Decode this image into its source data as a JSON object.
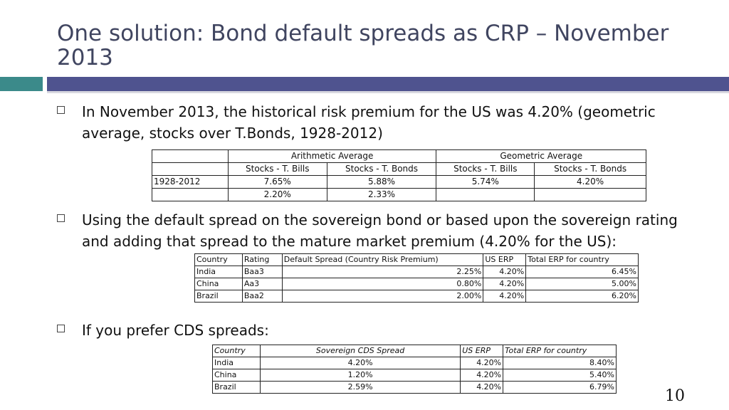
{
  "slide": {
    "title": "One solution: Bond default spreads as CRP – November 2013",
    "page_number": "10",
    "colors": {
      "title": "#404560",
      "accent_teal": "#3b8a8a",
      "accent_purple": "#4f538f"
    }
  },
  "bullets": [
    {
      "text": "In November 2013, the historical risk premium for the US was 4.20% (geometric average, stocks over T.Bonds, 1928-2012)"
    },
    {
      "text": "Using the default spread on the sovereign bond or based upon the sovereign rating and adding that spread to the mature market premium (4.20% for the US):"
    },
    {
      "text": "If you prefer CDS spreads:"
    }
  ],
  "premium_table": {
    "group_headers": [
      "Arithmetic Average",
      "Geometric Average"
    ],
    "sub_headers": [
      "Stocks - T. Bills",
      "Stocks - T. Bonds",
      "Stocks - T. Bills",
      "Stocks - T. Bonds"
    ],
    "rows": [
      {
        "label": "1928-2012",
        "cells": [
          "7.65%",
          "5.88%",
          "5.74%",
          "4.20%"
        ]
      },
      {
        "label": "",
        "cells": [
          "2.20%",
          "2.33%",
          "",
          ""
        ]
      }
    ]
  },
  "rating_table": {
    "headers": [
      "Country",
      "Rating",
      "Default Spread (Country Risk Premium)",
      "US ERP",
      "Total ERP for country"
    ],
    "rows": [
      [
        "India",
        "Baa3",
        "2.25%",
        "4.20%",
        "6.45%"
      ],
      [
        "China",
        "Aa3",
        "0.80%",
        "4.20%",
        "5.00%"
      ],
      [
        "Brazil",
        "Baa2",
        "2.00%",
        "4.20%",
        "6.20%"
      ]
    ]
  },
  "cds_table": {
    "headers": [
      "Country",
      "Sovereign CDS Spread",
      "US ERP",
      "Total ERP for country"
    ],
    "rows": [
      [
        "India",
        "4.20%",
        "4.20%",
        "8.40%"
      ],
      [
        "China",
        "1.20%",
        "4.20%",
        "5.40%"
      ],
      [
        "Brazil",
        "2.59%",
        "4.20%",
        "6.79%"
      ]
    ]
  }
}
